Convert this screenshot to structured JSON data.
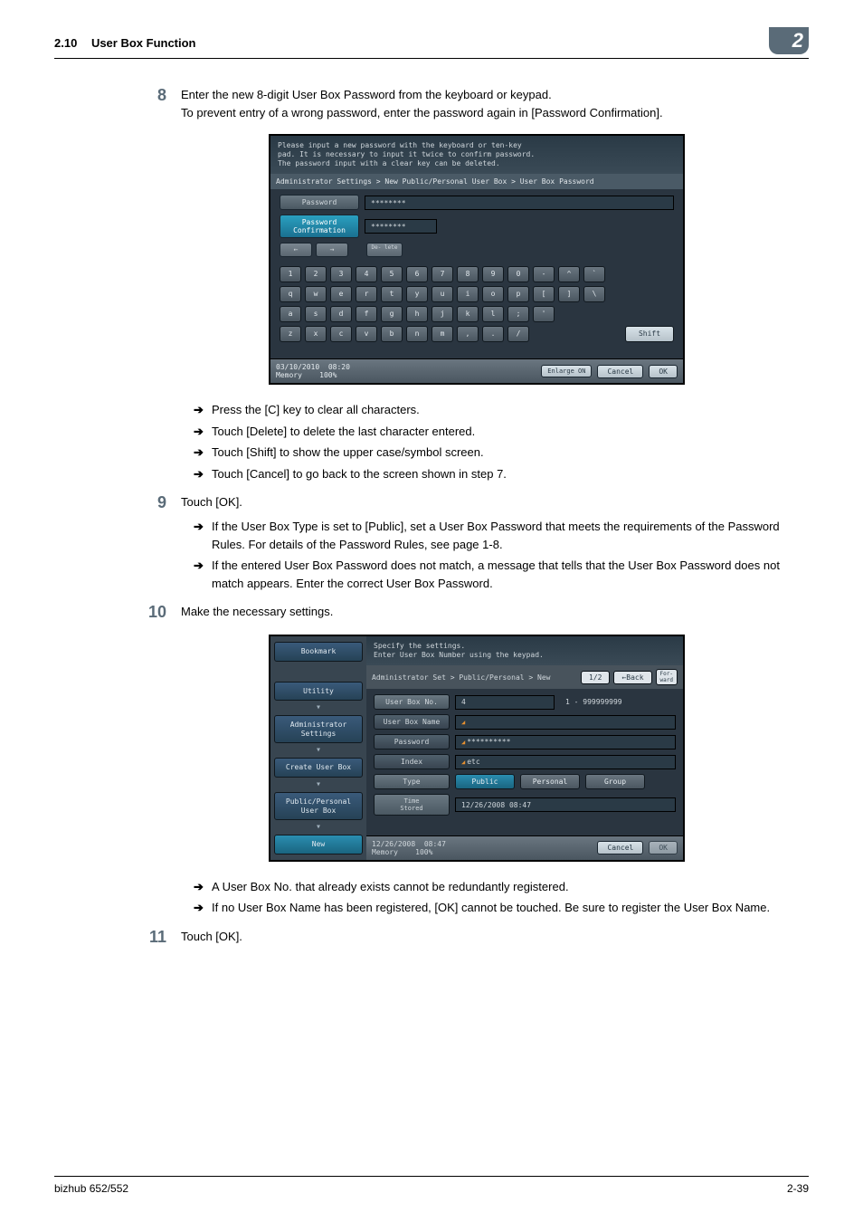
{
  "header": {
    "section_number": "2.10",
    "section_title": "User Box Function",
    "chapter_badge": "2"
  },
  "steps": {
    "s8": {
      "num": "8",
      "line1": "Enter the new 8-digit User Box Password from the keyboard or keypad.",
      "line2": "To prevent entry of a wrong password, enter the password again in [Password Confirmation]."
    },
    "s8_subs": {
      "a": "Press the [C] key to clear all characters.",
      "b": "Touch [Delete] to delete the last character entered.",
      "c": "Touch [Shift] to show the upper case/symbol screen.",
      "d": "Touch [Cancel] to go back to the screen shown in step 7."
    },
    "s9": {
      "num": "9",
      "text": "Touch [OK]."
    },
    "s9_subs": {
      "a": "If the User Box Type is set to [Public], set a User Box Password that meets the requirements of the Password Rules. For details of the Password Rules, see page 1-8.",
      "b": "If the entered User Box Password does not match, a message that tells that the User Box Password does not match appears. Enter the correct User Box Password."
    },
    "s10": {
      "num": "10",
      "text": "Make the necessary settings."
    },
    "s10_subs": {
      "a": "A User Box No. that already exists cannot be redundantly registered.",
      "b": "If no User Box Name has been registered, [OK] cannot be touched. Be sure to register the User Box Name."
    },
    "s11": {
      "num": "11",
      "text": "Touch [OK]."
    }
  },
  "keyboard_shot": {
    "msg1": "Please input a new password with the keyboard or ten-key",
    "msg2": "pad.  It is necessary to input it twice to confirm password.",
    "msg3": "The password input with a clear key can be deleted.",
    "breadcrumb": "Administrator Settings > New Public/Personal User Box > User Box Password",
    "password_label": "Password",
    "password_value": "********",
    "confirm_label": "Password Confirmation",
    "confirm_value": "********",
    "nav_left": "←",
    "nav_right": "→",
    "delete_btn": "De-\nlete",
    "row1": [
      "1",
      "2",
      "3",
      "4",
      "5",
      "6",
      "7",
      "8",
      "9",
      "0",
      "-",
      "^",
      "`"
    ],
    "row2": [
      "q",
      "w",
      "e",
      "r",
      "t",
      "y",
      "u",
      "i",
      "o",
      "p",
      "[",
      "]",
      "\\"
    ],
    "row3": [
      "a",
      "s",
      "d",
      "f",
      "g",
      "h",
      "j",
      "k",
      "l",
      ";",
      "'"
    ],
    "row4": [
      "z",
      "x",
      "c",
      "v",
      "b",
      "n",
      "m",
      ",",
      ".",
      "/"
    ],
    "shift": "Shift",
    "footer_date": "03/10/2010",
    "footer_time": "08:20",
    "footer_mem": "Memory",
    "footer_pct": "100%",
    "enlarge": "Enlarge ON",
    "cancel": "Cancel",
    "ok": "OK"
  },
  "settings_shot": {
    "left": {
      "bookmark": "Bookmark",
      "utility": "Utility",
      "admin": "Administrator\nSettings",
      "create": "Create User Box",
      "pubper": "Public/Personal\nUser Box",
      "new": "New"
    },
    "top1": "Specify the settings.",
    "top2": "Enter User Box Number using the keypad.",
    "breadcrumb": "Administrator Set > Public/Personal > New",
    "page": "1/2",
    "back": "←Back",
    "fwd": "For-\nward",
    "rows": {
      "boxno_label": "User Box No.",
      "boxno_value": "4",
      "boxno_range": "1 - 999999999",
      "boxname_label": "User Box Name",
      "boxname_value": "",
      "password_label": "Password",
      "password_value": "**********",
      "index_label": "Index",
      "index_value": "etc",
      "type_label": "Type",
      "type_public": "Public",
      "type_personal": "Personal",
      "type_group": "Group",
      "stored_label": "Time\nStored",
      "stored_value": "12/26/2008  08:47"
    },
    "footer_date": "12/26/2008",
    "footer_time": "08:47",
    "footer_mem": "Memory",
    "footer_pct": "100%",
    "cancel": "Cancel",
    "ok": "OK"
  },
  "footer": {
    "left": "bizhub 652/552",
    "right": "2-39"
  },
  "arrow_glyph": "➔"
}
